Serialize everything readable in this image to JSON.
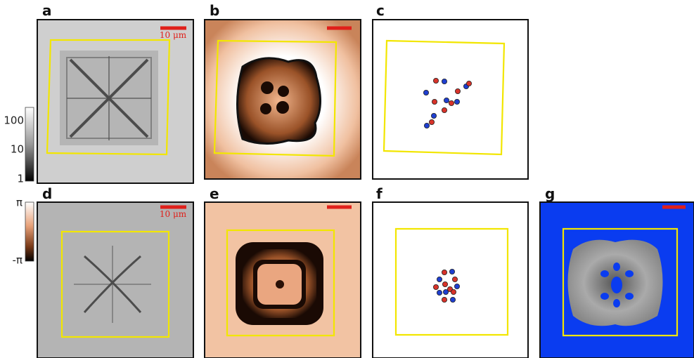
{
  "panels": [
    {
      "label": "a",
      "scale_bar": "10 μm"
    },
    {
      "label": "b"
    },
    {
      "label": "c"
    },
    {
      "label": "d",
      "scale_bar": "10 μm"
    },
    {
      "label": "e"
    },
    {
      "label": "f"
    },
    {
      "label": "g"
    }
  ],
  "colorbars": [
    {
      "ticks": [
        "100",
        "10",
        "1"
      ]
    },
    {
      "ticks": [
        "π",
        "-π"
      ]
    }
  ]
}
